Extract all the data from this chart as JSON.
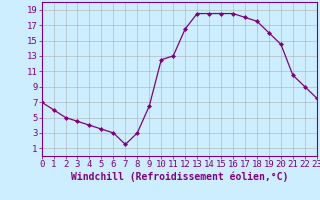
{
  "hours": [
    0,
    1,
    2,
    3,
    4,
    5,
    6,
    7,
    8,
    9,
    10,
    11,
    12,
    13,
    14,
    15,
    16,
    17,
    18,
    19,
    20,
    21,
    22,
    23
  ],
  "values": [
    7,
    6,
    5,
    4.5,
    4,
    3.5,
    3,
    1.5,
    3,
    6.5,
    12.5,
    13,
    16.5,
    18.5,
    18.5,
    18.5,
    18.5,
    18,
    17.5,
    16,
    14.5,
    10.5,
    9,
    7.5
  ],
  "line_color": "#800080",
  "marker": "D",
  "marker_size": 2.0,
  "bg_color": "#cceeff",
  "grid_color": "#b0b0b0",
  "xlabel": "Windchill (Refroidissement éolien,°C)",
  "xlim": [
    0,
    23
  ],
  "ylim": [
    0,
    20
  ],
  "yticks": [
    1,
    3,
    5,
    7,
    9,
    11,
    13,
    15,
    17,
    19
  ],
  "xticks": [
    0,
    1,
    2,
    3,
    4,
    5,
    6,
    7,
    8,
    9,
    10,
    11,
    12,
    13,
    14,
    15,
    16,
    17,
    18,
    19,
    20,
    21,
    22,
    23
  ],
  "tick_color": "#800080",
  "label_color": "#800080",
  "label_fontsize": 7,
  "tick_fontsize": 6.5
}
